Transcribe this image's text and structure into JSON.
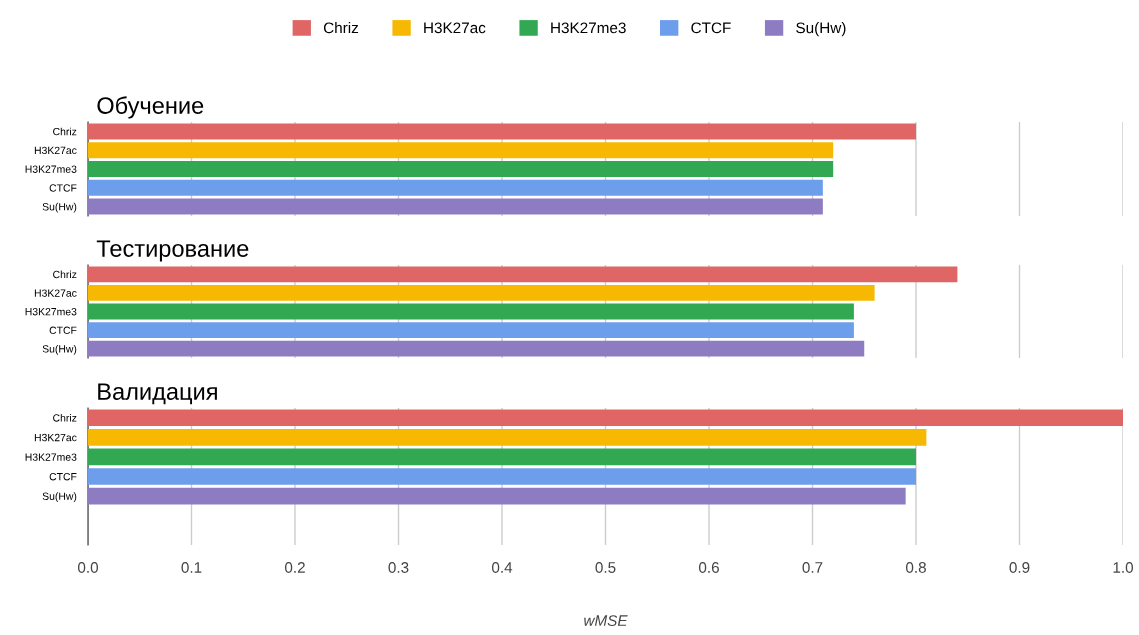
{
  "chart_data": [
    {
      "type": "bar",
      "orientation": "horizontal",
      "title": "Обучение",
      "categories": [
        "Chriz",
        "H3K27ac",
        "H3K27me3",
        "CTCF",
        "Su(Hw)"
      ],
      "series": [
        {
          "name": "Chriz",
          "color": "#e06666",
          "values": [
            0.8,
            null,
            null,
            null,
            null
          ]
        },
        {
          "name": "H3K27ac",
          "color": "#f6b800",
          "values": [
            null,
            0.72,
            null,
            null,
            null
          ]
        },
        {
          "name": "H3K27me3",
          "color": "#33a853",
          "values": [
            null,
            null,
            0.72,
            null,
            null
          ]
        },
        {
          "name": "CTCF",
          "color": "#6d9eeb",
          "values": [
            null,
            null,
            null,
            0.71,
            null
          ]
        },
        {
          "name": "Su(Hw)",
          "color": "#8e7cc3",
          "values": [
            null,
            null,
            null,
            null,
            0.71
          ]
        }
      ],
      "xlim": [
        0,
        1
      ],
      "xticks": [
        {
          "value": 0,
          "label": null
        },
        {
          "value": 0.1,
          "label": null
        },
        {
          "value": 0.2,
          "label": null
        },
        {
          "value": 0.3,
          "label": null
        },
        {
          "value": 0.4,
          "label": null
        },
        {
          "value": 0.5,
          "label": null
        },
        {
          "value": 0.6,
          "label": null
        },
        {
          "value": 0.7,
          "label": null
        },
        {
          "value": 0.8,
          "label": null
        },
        {
          "value": 0.9,
          "label": null
        },
        {
          "value": 1,
          "label": null
        }
      ],
      "grid": "x",
      "legend": "top",
      "tick_labels": "y"
    },
    {
      "type": "bar",
      "orientation": "horizontal",
      "title": "Тестирование",
      "categories": [
        "Chriz",
        "H3K27ac",
        "H3K27me3",
        "CTCF",
        "Su(Hw)"
      ],
      "series": [
        {
          "color": "#e06666",
          "values": [
            0.84,
            null,
            null,
            null,
            null
          ]
        },
        {
          "color": "#f6b800",
          "values": [
            null,
            0.76,
            null,
            null,
            null
          ]
        },
        {
          "color": "#33a853",
          "values": [
            null,
            null,
            0.74,
            null,
            null
          ]
        },
        {
          "color": "#6d9eeb",
          "values": [
            null,
            null,
            null,
            0.74,
            null
          ]
        },
        {
          "color": "#8e7cc3",
          "values": [
            null,
            null,
            null,
            null,
            0.75
          ]
        }
      ],
      "xlim": [
        0,
        1
      ],
      "xticks": [
        {
          "value": 0,
          "label": null
        },
        {
          "value": 0.1,
          "label": null
        },
        {
          "value": 0.2,
          "label": null
        },
        {
          "value": 0.3,
          "label": null
        },
        {
          "value": 0.4,
          "label": null
        },
        {
          "value": 0.5,
          "label": null
        },
        {
          "value": 0.6,
          "label": null
        },
        {
          "value": 0.7,
          "label": null
        },
        {
          "value": 0.8,
          "label": null
        },
        {
          "value": 0.9,
          "label": null
        },
        {
          "value": 1,
          "label": null
        }
      ],
      "grid": "x",
      "tick_labels": "y"
    },
    {
      "type": "bar",
      "orientation": "horizontal",
      "title": "Валидация",
      "categories": [
        "Chriz",
        "H3K27ac",
        "H3K27me3",
        "CTCF",
        "Su(Hw)"
      ],
      "series": [
        {
          "color": "#e06666",
          "values": [
            1.0,
            null,
            null,
            null,
            null
          ]
        },
        {
          "color": "#f6b800",
          "values": [
            null,
            0.81,
            null,
            null,
            null
          ]
        },
        {
          "color": "#33a853",
          "values": [
            null,
            null,
            0.8,
            null,
            null
          ]
        },
        {
          "color": "#6d9eeb",
          "values": [
            null,
            null,
            null,
            0.8,
            null
          ]
        },
        {
          "color": "#8e7cc3",
          "values": [
            null,
            null,
            null,
            null,
            0.79
          ]
        }
      ],
      "xlim": [
        0,
        1
      ],
      "xticks": [
        {
          "value": 0,
          "label": "0.0"
        },
        {
          "value": 0.1,
          "label": "0.1"
        },
        {
          "value": 0.2,
          "label": "0.2"
        },
        {
          "value": 0.3,
          "label": "0.3"
        },
        {
          "value": 0.4,
          "label": "0.4"
        },
        {
          "value": 0.5,
          "label": "0.5"
        },
        {
          "value": 0.6,
          "label": "0.6"
        },
        {
          "value": 0.7,
          "label": "0.7"
        },
        {
          "value": 0.8,
          "label": "0.8"
        },
        {
          "value": 0.9,
          "label": "0.9"
        },
        {
          "value": 1,
          "label": "1.0"
        }
      ],
      "grid": "x",
      "xlabel": "wMSE"
    }
  ]
}
